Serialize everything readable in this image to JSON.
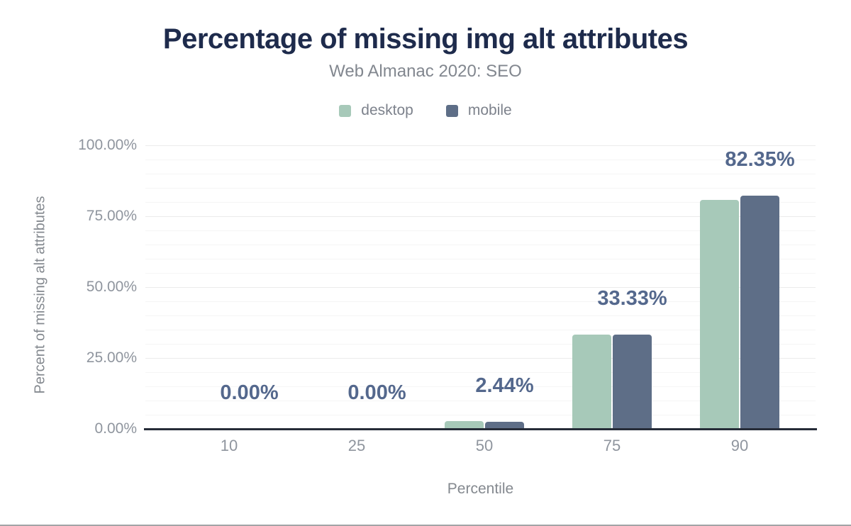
{
  "chart": {
    "title": "Percentage of missing img alt attributes",
    "subtitle": "Web Almanac 2020: SEO",
    "x_axis_title": "Percentile",
    "y_axis_title": "Percent of missing alt attributes"
  },
  "chart_data": {
    "type": "bar",
    "title": "Percentage of missing img alt attributes",
    "subtitle": "Web Almanac 2020: SEO",
    "xlabel": "Percentile",
    "ylabel": "Percent of missing alt attributes",
    "categories": [
      "10",
      "25",
      "50",
      "75",
      "90"
    ],
    "series": [
      {
        "name": "desktop",
        "color": "#a7c9b9",
        "values": [
          0,
          0,
          2.8,
          33.3,
          80.7
        ]
      },
      {
        "name": "mobile",
        "color": "#5e6e87",
        "values": [
          0,
          0,
          2.44,
          33.33,
          82.35
        ]
      }
    ],
    "data_labels": {
      "labeled_series": "mobile",
      "values": [
        "0.00%",
        "0.00%",
        "2.44%",
        "33.33%",
        "82.35%"
      ]
    },
    "y_ticks": [
      {
        "value": 0,
        "label": "0.00%"
      },
      {
        "value": 25,
        "label": "25.00%"
      },
      {
        "value": 50,
        "label": "50.00%"
      },
      {
        "value": 75,
        "label": "75.00%"
      },
      {
        "value": 100,
        "label": "100.00%"
      }
    ],
    "ylim": [
      0,
      100
    ],
    "grid": {
      "on": true,
      "minor_step": 5,
      "major_step": 25
    },
    "legend_position": "top"
  },
  "colors": {
    "title": "#1e2b4c",
    "subtitle": "#82878f",
    "axis_text": "#8f959e",
    "axis_title_text": "#84898f",
    "legend_text": "#7d828c",
    "axis_line": "#262c38",
    "grid_minor": "#f5f5f5",
    "grid_major": "#ebebeb",
    "data_label": "#54688d",
    "desktop_bar": "#a7c9b9",
    "mobile_bar": "#5e6e87",
    "bottom_border": "#a2a4a6"
  }
}
